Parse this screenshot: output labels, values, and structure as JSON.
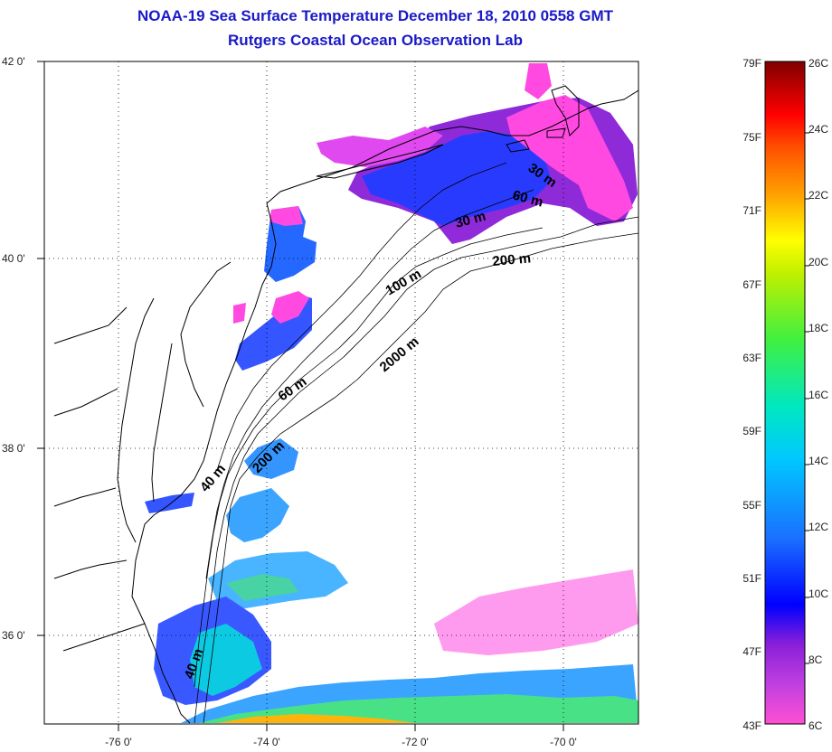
{
  "header": {
    "title": "NOAA-19 Sea Surface Temperature December 18, 2010 0558 GMT",
    "subtitle": "Rutgers Coastal Ocean Observation Lab"
  },
  "map": {
    "lat_labels": [
      "42 0'",
      "40 0'",
      "38 0'",
      "36 0'"
    ],
    "lon_labels": [
      "-76 0'",
      "-74 0'",
      "-72 0'",
      "-70 0'"
    ],
    "grid": "dotted",
    "isobath_labels": [
      "30 m",
      "60 m",
      "30 m",
      "200 m",
      "100 m",
      "2000 m",
      "60 m",
      "200 m",
      "40 m",
      "40 m"
    ]
  },
  "colorbar": {
    "fahrenheit": [
      "79F",
      "75F",
      "71F",
      "67F",
      "63F",
      "59F",
      "55F",
      "51F",
      "47F",
      "43F"
    ],
    "celsius": [
      "26C",
      "24C",
      "22C",
      "20C",
      "18C",
      "16C",
      "14C",
      "12C",
      "10C",
      "8C",
      "6C"
    ],
    "colors": [
      "#ff4fd4",
      "#c040e0",
      "#8a1fd8",
      "#0000ff",
      "#1a70ff",
      "#00c8ff",
      "#00e8c0",
      "#40f040",
      "#c0f000",
      "#ffff00",
      "#ffa000",
      "#ff5000",
      "#ff0000",
      "#c00000",
      "#800000"
    ]
  }
}
